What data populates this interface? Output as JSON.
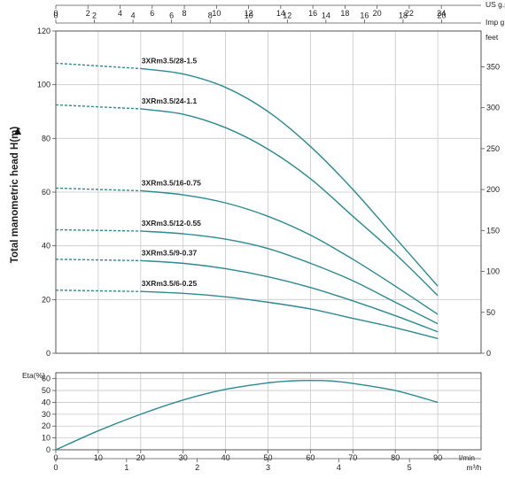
{
  "chart_data": [
    {
      "type": "line",
      "ylabel": "Total manometric head H(m)",
      "ylim": [
        0,
        120
      ],
      "y_ticks": [
        0,
        20,
        40,
        60,
        80,
        100,
        120
      ],
      "right_axis": {
        "label": "feet",
        "ylim": [
          0,
          393.7
        ],
        "ticks": [
          0,
          50,
          100,
          150,
          200,
          250,
          300,
          350
        ]
      },
      "top_axes": [
        {
          "label": "US g.p.m",
          "range": [
            0,
            24
          ],
          "ticks": [
            0,
            2,
            4,
            6,
            8,
            10,
            12,
            14,
            16,
            18,
            20,
            22,
            24
          ]
        },
        {
          "label": "Imp g.p.m",
          "range": [
            0,
            20
          ],
          "ticks": [
            0,
            2,
            4,
            6,
            8,
            10,
            12,
            14,
            16,
            18,
            20
          ]
        }
      ],
      "x_unit": "l/min",
      "xlim": [
        0,
        95
      ],
      "grid": true,
      "line_color": "#2b8a93",
      "dashed_until_x": 20,
      "series": [
        {
          "name": "3XRm3.5/28-1.5",
          "x": [
            0,
            20,
            30,
            40,
            50,
            60,
            70,
            80,
            90
          ],
          "y": [
            108,
            106,
            104,
            99,
            90,
            77,
            61,
            43,
            25
          ]
        },
        {
          "name": "3XRm3.5/24-1.1",
          "x": [
            0,
            20,
            30,
            40,
            50,
            60,
            70,
            80,
            90
          ],
          "y": [
            92.5,
            91,
            89,
            84,
            76,
            65,
            51,
            37,
            21.5
          ]
        },
        {
          "name": "3XRm3.5/16-0.75",
          "x": [
            0,
            20,
            30,
            40,
            50,
            60,
            70,
            80,
            90
          ],
          "y": [
            61.5,
            60.5,
            59,
            56,
            51,
            44,
            35,
            25,
            14.5
          ]
        },
        {
          "name": "3XRm3.5/12-0.55",
          "x": [
            0,
            20,
            30,
            40,
            50,
            60,
            70,
            80,
            90
          ],
          "y": [
            46,
            45.5,
            44.5,
            42.5,
            39,
            33.5,
            27,
            19,
            11
          ]
        },
        {
          "name": "3XRm3.5/9-0.37",
          "x": [
            0,
            20,
            30,
            40,
            50,
            60,
            70,
            80,
            90
          ],
          "y": [
            35,
            34.5,
            33.5,
            31.5,
            28.5,
            24.5,
            19.5,
            14,
            8
          ]
        },
        {
          "name": "3XRm3.5/6-0.25",
          "x": [
            0,
            20,
            30,
            40,
            50,
            60,
            70,
            80,
            90
          ],
          "y": [
            23.5,
            23,
            22.3,
            21,
            19,
            16.5,
            13,
            9.5,
            5.5
          ]
        }
      ]
    },
    {
      "type": "line",
      "ylabel": "Eta(%)",
      "ylim": [
        0,
        65
      ],
      "y_ticks": [
        0,
        10,
        20,
        30,
        40,
        50,
        60
      ],
      "x_unit": "l/min",
      "xlim": [
        0,
        95
      ],
      "x_ticks": [
        0,
        10,
        20,
        30,
        40,
        50,
        60,
        70,
        80,
        90
      ],
      "secondary_x": {
        "label": "m³/h",
        "ticks": [
          0,
          1,
          2,
          3,
          4,
          5
        ]
      },
      "grid": true,
      "line_color": "#2b8a93",
      "series": [
        {
          "x": [
            0,
            10,
            20,
            30,
            40,
            50,
            55,
            60,
            65,
            70,
            80,
            90
          ],
          "y": [
            0,
            16,
            30,
            42,
            51,
            56.5,
            58,
            58.5,
            58,
            56,
            50,
            40
          ]
        }
      ]
    }
  ]
}
